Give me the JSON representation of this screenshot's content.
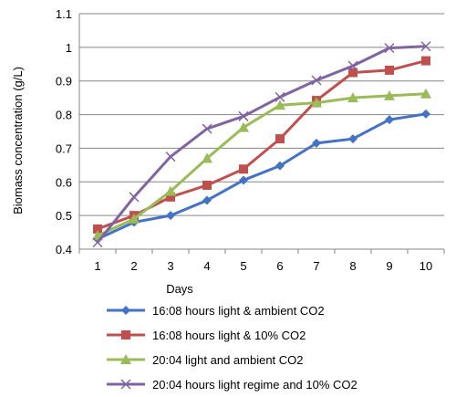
{
  "chart_data": {
    "type": "line",
    "xlabel": "Days",
    "ylabel": "Biomass concentration (g/L)",
    "x": [
      1,
      2,
      3,
      4,
      5,
      6,
      7,
      8,
      9,
      10
    ],
    "x_tick_labels": [
      "1",
      "2",
      "3",
      "4",
      "5",
      "6",
      "7",
      "8",
      "9",
      "10"
    ],
    "ylim": [
      0.4,
      1.1
    ],
    "y_ticks": [
      0.4,
      0.5,
      0.6,
      0.7,
      0.8,
      0.9,
      1.0,
      1.1
    ],
    "y_tick_labels": [
      "0.4",
      "0.5",
      "0.6",
      "0.7",
      "0.8",
      "0.9",
      "1",
      "1.1"
    ],
    "grid": "horizontal",
    "legend_position": "bottom",
    "series": [
      {
        "name": "16:08 hours light & ambient CO2",
        "color": "#4472C4",
        "marker": "diamond",
        "values": [
          0.43,
          0.48,
          0.5,
          0.545,
          0.605,
          0.648,
          0.715,
          0.728,
          0.785,
          0.802
        ]
      },
      {
        "name": "16:08 hours light & 10% CO2",
        "color": "#C0504D",
        "marker": "square",
        "values": [
          0.46,
          0.5,
          0.555,
          0.59,
          0.638,
          0.728,
          0.842,
          0.925,
          0.932,
          0.96
        ]
      },
      {
        "name": "20:04 light and ambient CO2",
        "color": "#9BBB59",
        "marker": "triangle",
        "values": [
          0.44,
          0.49,
          0.572,
          0.67,
          0.762,
          0.828,
          0.835,
          0.85,
          0.856,
          0.862
        ]
      },
      {
        "name": "20:04 hours light regime and 10% CO2",
        "color": "#8064A2",
        "marker": "x",
        "values": [
          0.42,
          0.555,
          0.675,
          0.758,
          0.795,
          0.852,
          0.902,
          0.945,
          0.998,
          1.003
        ]
      }
    ]
  }
}
